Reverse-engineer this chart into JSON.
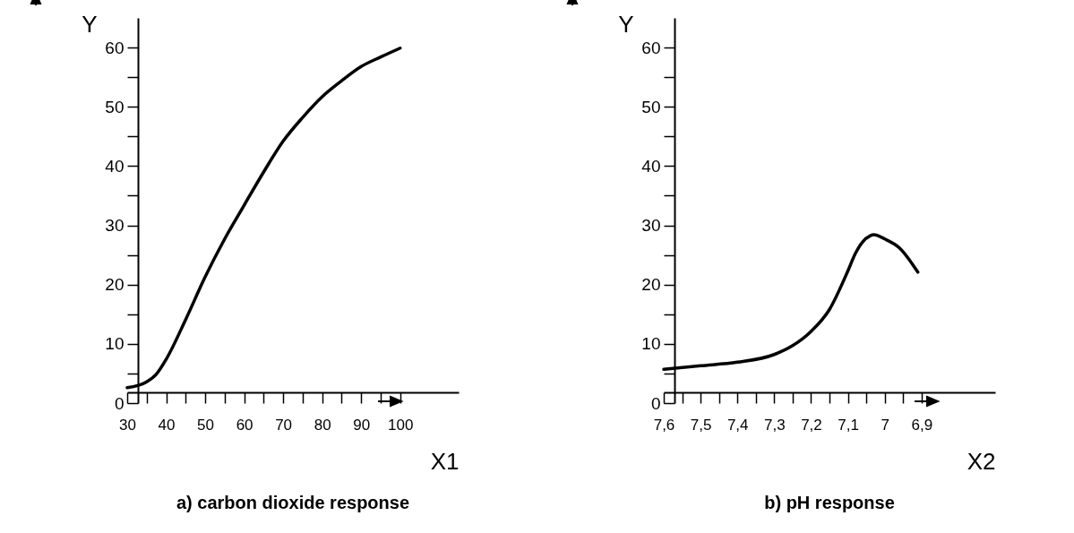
{
  "chart_data": [
    {
      "type": "line",
      "title": "a) carbon dioxide response",
      "xlabel": "X1",
      "ylabel": "Y",
      "x": [
        30,
        35,
        37.5,
        40,
        45,
        50,
        55,
        60,
        65,
        70,
        75,
        80,
        85,
        90,
        95,
        100
      ],
      "series": [
        {
          "color": "#000000",
          "values": [
            2.6,
            3.6,
            4.9,
            7.4,
            14.1,
            21.3,
            27.7,
            33.4,
            39,
            44.2,
            48.2,
            51.7,
            54.4,
            56.8,
            58.4,
            59.9
          ]
        }
      ],
      "xlim": [
        30,
        115
      ],
      "ylim": [
        0,
        65
      ],
      "xticks": [
        30,
        {
          "value": 35,
          "label": null
        },
        40,
        {
          "value": 45,
          "label": null
        },
        50,
        {
          "value": 55,
          "label": null
        },
        60,
        {
          "value": 65,
          "label": null
        },
        70,
        {
          "value": 75,
          "label": null
        },
        80,
        {
          "value": 85,
          "label": null
        },
        90,
        {
          "value": 95,
          "label": null
        },
        100
      ],
      "yticks": [
        0,
        {
          "value": 5,
          "label": null
        },
        10,
        {
          "value": 15,
          "label": null
        },
        20,
        {
          "value": 25,
          "label": null
        },
        30,
        {
          "value": 35,
          "label": null
        },
        40,
        {
          "value": 45,
          "label": null
        },
        50,
        {
          "value": 55,
          "label": null
        },
        60
      ],
      "grid": false
    },
    {
      "type": "line",
      "title": "b) pH response",
      "xlabel": "X2",
      "ylabel": "Y",
      "x": [
        7.6,
        7.5,
        7.4,
        7.3,
        7.25,
        7.2,
        7.15,
        7.1,
        7.08,
        7.06,
        7.04,
        7.03,
        7,
        6.96,
        6.91
      ],
      "series": [
        {
          "color": "#000000",
          "values": [
            5.7,
            6.3,
            6.9,
            8.2,
            9.7,
            12.1,
            15.8,
            22.3,
            25.2,
            27.2,
            28.2,
            28.4,
            27.7,
            26.2,
            22.1
          ]
        }
      ],
      "xlim": [
        7.6,
        6.7
      ],
      "ylim": [
        0,
        65
      ],
      "xticks": [
        {
          "value": 7.6,
          "label": "7,6"
        },
        {
          "value": 7.55,
          "label": null
        },
        {
          "value": 7.5,
          "label": "7,5"
        },
        {
          "value": 7.45,
          "label": null
        },
        {
          "value": 7.4,
          "label": "7,4"
        },
        {
          "value": 7.35,
          "label": null
        },
        {
          "value": 7.3,
          "label": "7,3"
        },
        {
          "value": 7.25,
          "label": null
        },
        {
          "value": 7.2,
          "label": "7,2"
        },
        {
          "value": 7.15,
          "label": null
        },
        {
          "value": 7.1,
          "label": "7,1"
        },
        {
          "value": 7.05,
          "label": null
        },
        7,
        {
          "value": 6.95,
          "label": null
        },
        {
          "value": 6.9,
          "label": "6,9"
        }
      ],
      "yticks": [
        0,
        {
          "value": 5,
          "label": null
        },
        10,
        {
          "value": 15,
          "label": null
        },
        20,
        {
          "value": 25,
          "label": null
        },
        30,
        {
          "value": 35,
          "label": null
        },
        40,
        {
          "value": 45,
          "label": null
        },
        50,
        {
          "value": 55,
          "label": null
        },
        60
      ],
      "grid": false
    }
  ]
}
